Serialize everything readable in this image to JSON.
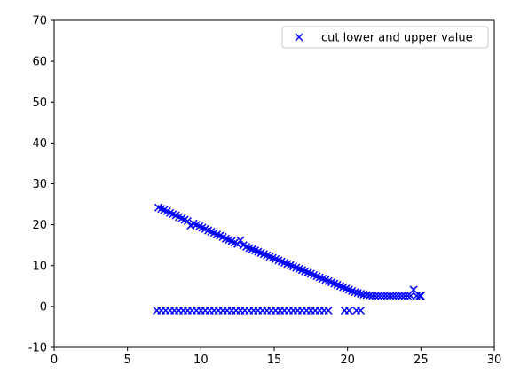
{
  "chart_data": {
    "type": "scatter",
    "xlim": [
      0,
      30
    ],
    "ylim": [
      -10,
      70
    ],
    "x_ticks": [
      "0",
      "5",
      "10",
      "15",
      "20",
      "25",
      "30"
    ],
    "y_ticks": [
      "-10",
      "0",
      "10",
      "20",
      "30",
      "40",
      "50",
      "60",
      "70"
    ],
    "grid": false,
    "legend_position": "top-right",
    "marker": "x",
    "color": "#0000ff",
    "series": [
      {
        "name": "cut lower and upper value",
        "points": [
          [
            7.1,
            24.2
          ],
          [
            7.3,
            23.9
          ],
          [
            7.5,
            23.6
          ],
          [
            7.7,
            23.3
          ],
          [
            7.9,
            22.9
          ],
          [
            8.1,
            22.6
          ],
          [
            8.3,
            22.3
          ],
          [
            8.5,
            21.9
          ],
          [
            8.7,
            21.6
          ],
          [
            8.9,
            21.2
          ],
          [
            9.1,
            20.9
          ],
          [
            9.3,
            19.8
          ],
          [
            9.5,
            20.3
          ],
          [
            9.7,
            20.0
          ],
          [
            9.9,
            19.6
          ],
          [
            10.1,
            19.3
          ],
          [
            10.3,
            19.0
          ],
          [
            10.5,
            18.6
          ],
          [
            10.7,
            18.3
          ],
          [
            10.9,
            18.0
          ],
          [
            11.1,
            17.6
          ],
          [
            11.3,
            17.3
          ],
          [
            11.5,
            17.0
          ],
          [
            11.7,
            16.6
          ],
          [
            11.9,
            16.3
          ],
          [
            12.1,
            16.0
          ],
          [
            12.3,
            15.6
          ],
          [
            12.5,
            15.3
          ],
          [
            12.7,
            16.2
          ],
          [
            12.9,
            15.0
          ],
          [
            13.1,
            14.6
          ],
          [
            13.3,
            14.3
          ],
          [
            13.5,
            14.0
          ],
          [
            13.7,
            13.7
          ],
          [
            13.9,
            13.4
          ],
          [
            14.1,
            13.1
          ],
          [
            14.3,
            12.8
          ],
          [
            14.5,
            12.5
          ],
          [
            14.7,
            12.2
          ],
          [
            14.9,
            11.9
          ],
          [
            15.1,
            11.6
          ],
          [
            15.3,
            11.3
          ],
          [
            15.5,
            11.0
          ],
          [
            15.7,
            10.7
          ],
          [
            15.9,
            10.4
          ],
          [
            16.1,
            10.1
          ],
          [
            16.3,
            9.8
          ],
          [
            16.5,
            9.5
          ],
          [
            16.7,
            9.2
          ],
          [
            16.9,
            8.9
          ],
          [
            17.1,
            8.6
          ],
          [
            17.3,
            8.3
          ],
          [
            17.5,
            8.0
          ],
          [
            17.7,
            7.7
          ],
          [
            17.9,
            7.4
          ],
          [
            18.1,
            7.1
          ],
          [
            18.3,
            6.8
          ],
          [
            18.5,
            6.5
          ],
          [
            18.7,
            6.2
          ],
          [
            18.9,
            5.9
          ],
          [
            19.1,
            5.6
          ],
          [
            19.3,
            5.3
          ],
          [
            19.5,
            5.0
          ],
          [
            19.7,
            4.7
          ],
          [
            19.9,
            4.4
          ],
          [
            20.1,
            4.1
          ],
          [
            20.3,
            3.8
          ],
          [
            20.5,
            3.5
          ],
          [
            20.7,
            3.3
          ],
          [
            20.9,
            3.1
          ],
          [
            21.1,
            2.9
          ],
          [
            21.3,
            2.8
          ],
          [
            21.5,
            2.7
          ],
          [
            21.7,
            2.6
          ],
          [
            21.9,
            2.6
          ],
          [
            22.1,
            2.6
          ],
          [
            22.3,
            2.6
          ],
          [
            22.5,
            2.6
          ],
          [
            22.7,
            2.6
          ],
          [
            22.9,
            2.6
          ],
          [
            23.1,
            2.6
          ],
          [
            23.3,
            2.6
          ],
          [
            23.5,
            2.6
          ],
          [
            23.7,
            2.6
          ],
          [
            23.9,
            2.6
          ],
          [
            24.1,
            2.6
          ],
          [
            24.3,
            2.6
          ],
          [
            24.5,
            4.1
          ],
          [
            24.7,
            2.6
          ],
          [
            24.9,
            2.6
          ],
          [
            25.0,
            2.6
          ],
          [
            7.0,
            -1.0
          ],
          [
            7.3,
            -1.0
          ],
          [
            7.6,
            -1.0
          ],
          [
            7.9,
            -1.0
          ],
          [
            8.2,
            -1.0
          ],
          [
            8.5,
            -1.0
          ],
          [
            8.8,
            -1.0
          ],
          [
            9.1,
            -1.0
          ],
          [
            9.4,
            -1.0
          ],
          [
            9.7,
            -1.0
          ],
          [
            10.0,
            -1.0
          ],
          [
            10.3,
            -1.0
          ],
          [
            10.6,
            -1.0
          ],
          [
            10.9,
            -1.0
          ],
          [
            11.2,
            -1.0
          ],
          [
            11.5,
            -1.0
          ],
          [
            11.8,
            -1.0
          ],
          [
            12.1,
            -1.0
          ],
          [
            12.4,
            -1.0
          ],
          [
            12.7,
            -1.0
          ],
          [
            13.0,
            -1.0
          ],
          [
            13.3,
            -1.0
          ],
          [
            13.6,
            -1.0
          ],
          [
            13.9,
            -1.0
          ],
          [
            14.2,
            -1.0
          ],
          [
            14.5,
            -1.0
          ],
          [
            14.8,
            -1.0
          ],
          [
            15.1,
            -1.0
          ],
          [
            15.4,
            -1.0
          ],
          [
            15.7,
            -1.0
          ],
          [
            16.0,
            -1.0
          ],
          [
            16.3,
            -1.0
          ],
          [
            16.6,
            -1.0
          ],
          [
            16.9,
            -1.0
          ],
          [
            17.2,
            -1.0
          ],
          [
            17.5,
            -1.0
          ],
          [
            17.8,
            -1.0
          ],
          [
            18.1,
            -1.0
          ],
          [
            18.4,
            -1.0
          ],
          [
            18.7,
            -1.0
          ],
          [
            19.8,
            -1.0
          ],
          [
            20.1,
            -1.0
          ],
          [
            20.6,
            -1.0
          ],
          [
            20.9,
            -1.0
          ]
        ]
      }
    ]
  }
}
